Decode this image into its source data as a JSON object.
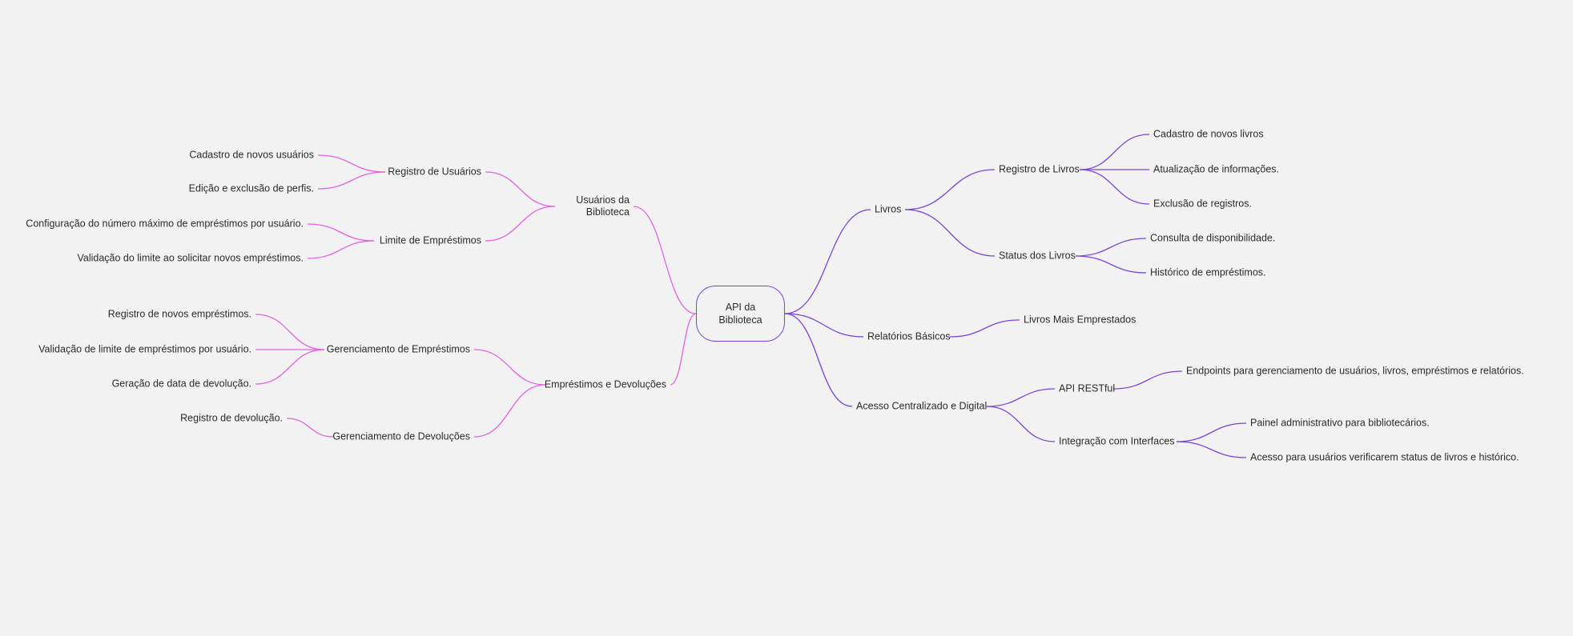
{
  "root": {
    "label": "API da Biblioteca",
    "color": "#7a45d6"
  },
  "colors": {
    "left": "#e461e0",
    "right": "#7a45d6"
  },
  "left": [
    {
      "label": "Usuários da Biblioteca",
      "children": [
        {
          "label": "Registro de Usuários",
          "children": [
            {
              "label": "Cadastro de novos usuários"
            },
            {
              "label": "Edição e exclusão de perfis."
            }
          ]
        },
        {
          "label": "Limite de Empréstimos",
          "children": [
            {
              "label": "Configuração do número máximo de empréstimos por usuário."
            },
            {
              "label": "Validação do limite ao solicitar novos empréstimos."
            }
          ]
        }
      ]
    },
    {
      "label": "Empréstimos e Devoluções",
      "children": [
        {
          "label": "Gerenciamento de Empréstimos",
          "children": [
            {
              "label": "Registro de novos empréstimos."
            },
            {
              "label": "Validação de limite de empréstimos por usuário."
            },
            {
              "label": "Geração de data de devolução."
            }
          ]
        },
        {
          "label": "Gerenciamento de Devoluções",
          "children": [
            {
              "label": "Registro de devolução."
            }
          ]
        }
      ]
    }
  ],
  "right": [
    {
      "label": "Livros",
      "children": [
        {
          "label": "Registro de Livros",
          "children": [
            {
              "label": "Cadastro de novos livros"
            },
            {
              "label": "Atualização de informações."
            },
            {
              "label": "Exclusão de registros."
            }
          ]
        },
        {
          "label": "Status dos Livros",
          "children": [
            {
              "label": "Consulta de disponibilidade."
            },
            {
              "label": "Histórico de empréstimos."
            }
          ]
        }
      ]
    },
    {
      "label": "Relatórios Básicos",
      "children": [
        {
          "label": "Livros Mais Emprestados"
        }
      ]
    },
    {
      "label": "Acesso Centralizado e Digital",
      "children": [
        {
          "label": "API RESTful",
          "children": [
            {
              "label": "Endpoints para gerenciamento de usuários, livros, empréstimos e relatórios."
            }
          ]
        },
        {
          "label": "Integração com Interfaces",
          "children": [
            {
              "label": "Painel administrativo para bibliotecários."
            },
            {
              "label": "Acesso para usuários verificarem status de livros e histórico."
            }
          ]
        }
      ]
    }
  ]
}
